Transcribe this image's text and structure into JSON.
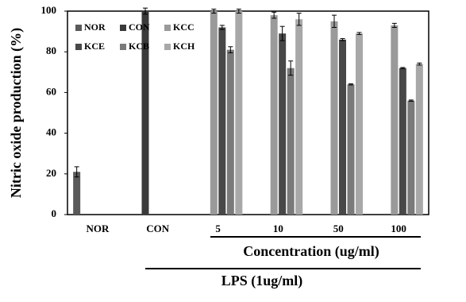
{
  "chart_data": {
    "type": "bar",
    "y_label": "Nitric oxide production (%)",
    "group_labels": [
      "Concentration (ug/ml)",
      "LPS (1ug/ml)"
    ],
    "categories": [
      "NOR",
      "CON",
      "5",
      "10",
      "50",
      "100"
    ],
    "ylim": [
      0,
      100
    ],
    "yticks": [
      0,
      20,
      40,
      60,
      80,
      100
    ],
    "legend": "top-left",
    "series": [
      {
        "name": "NOR",
        "color": "#5a5a5a",
        "values": [
          21,
          null,
          null,
          null,
          null,
          null
        ],
        "errors": [
          2.5,
          null,
          null,
          null,
          null,
          null
        ]
      },
      {
        "name": "CON",
        "color": "#3a3a3a",
        "values": [
          null,
          100,
          null,
          null,
          null,
          null
        ],
        "errors": [
          null,
          1.5,
          null,
          null,
          null,
          null
        ]
      },
      {
        "name": "KCC",
        "color": "#9a9a9a",
        "values": [
          null,
          null,
          100,
          98,
          95,
          93
        ],
        "errors": [
          null,
          null,
          1,
          1.5,
          3,
          1
        ]
      },
      {
        "name": "KCE",
        "color": "#484848",
        "values": [
          null,
          null,
          92,
          89,
          86,
          72
        ],
        "errors": [
          null,
          null,
          1,
          3.5,
          0.5,
          0.3
        ]
      },
      {
        "name": "KCB",
        "color": "#7a7a7a",
        "values": [
          null,
          null,
          81,
          72,
          64,
          56
        ],
        "errors": [
          null,
          null,
          1.5,
          3.5,
          0.3,
          0.3
        ]
      },
      {
        "name": "KCH",
        "color": "#a8a8a8",
        "values": [
          null,
          null,
          100,
          96,
          89,
          74
        ],
        "errors": [
          null,
          null,
          1,
          3,
          0.5,
          0.5
        ]
      }
    ]
  }
}
